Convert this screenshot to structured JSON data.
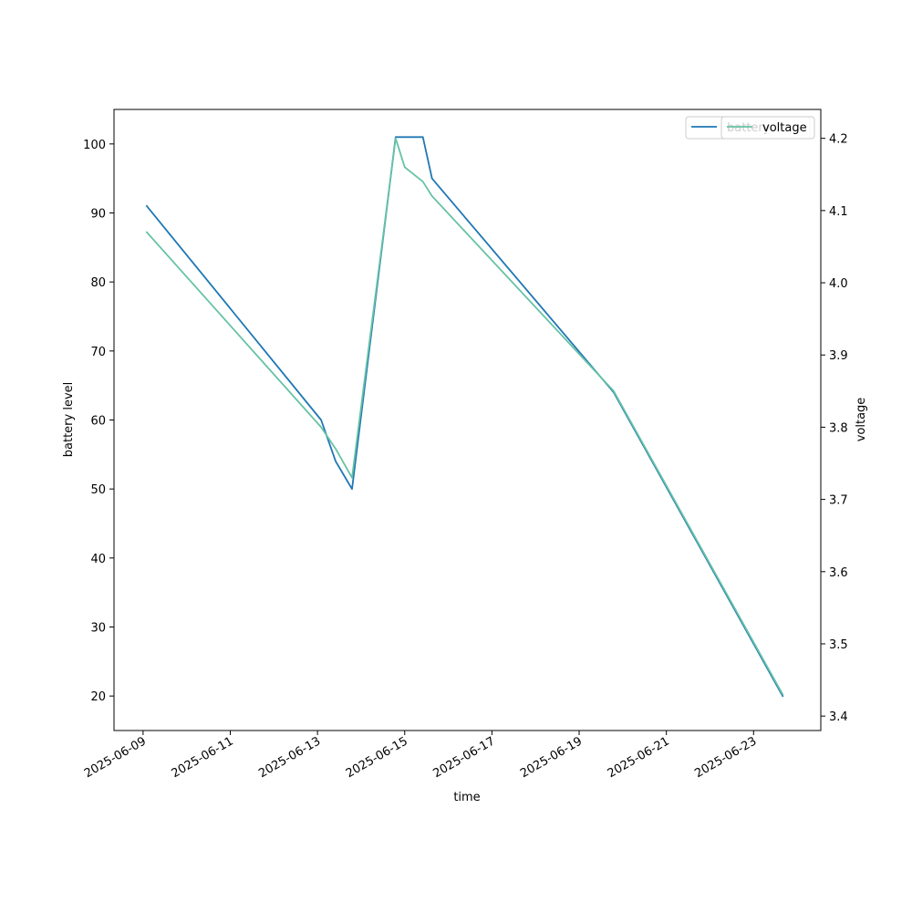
{
  "chart_data": {
    "type": "line",
    "xlabel": "time",
    "ylabel": "battery level",
    "y2label": "voltage",
    "x_ticks": [
      "2025-06-09",
      "2025-06-11",
      "2025-06-13",
      "2025-06-15",
      "2025-06-17",
      "2025-06-19",
      "2025-06-21",
      "2025-06-23"
    ],
    "xlim": [
      "2025-06-08T08:00",
      "2025-06-24T13:00"
    ],
    "ylim": [
      15,
      105
    ],
    "y_ticks": [
      20,
      30,
      40,
      50,
      60,
      70,
      80,
      90,
      100
    ],
    "y2lim": [
      3.38,
      4.24
    ],
    "y2_ticks": [
      "3.4",
      "3.5",
      "3.6",
      "3.7",
      "3.8",
      "3.9",
      "4.0",
      "4.1",
      "4.2"
    ],
    "grid": false,
    "legend": {
      "placement": "top-right",
      "entries": [
        "battery",
        "voltage"
      ]
    },
    "series": [
      {
        "name": "battery",
        "axis": "left",
        "color": "#1f77b4",
        "points": [
          [
            "2025-06-09T02:00",
            91
          ],
          [
            "2025-06-13T02:00",
            60
          ],
          [
            "2025-06-13T10:00",
            54
          ],
          [
            "2025-06-13T19:00",
            50
          ],
          [
            "2025-06-14T19:00",
            101
          ],
          [
            "2025-06-15T10:00",
            101
          ],
          [
            "2025-06-15T15:00",
            95
          ],
          [
            "2025-06-19T19:00",
            64
          ],
          [
            "2025-06-23T16:00",
            20
          ]
        ]
      },
      {
        "name": "voltage",
        "axis": "right",
        "color": "#66c2a5",
        "points": [
          [
            "2025-06-09T02:00",
            4.07
          ],
          [
            "2025-06-13T02:00",
            3.8
          ],
          [
            "2025-06-13T10:00",
            3.77
          ],
          [
            "2025-06-13T19:00",
            3.73
          ],
          [
            "2025-06-14T19:00",
            4.2
          ],
          [
            "2025-06-15T00:00",
            4.16
          ],
          [
            "2025-06-15T10:00",
            4.14
          ],
          [
            "2025-06-15T15:00",
            4.12
          ],
          [
            "2025-06-19T19:00",
            3.85
          ],
          [
            "2025-06-23T16:00",
            3.43
          ]
        ]
      }
    ]
  }
}
